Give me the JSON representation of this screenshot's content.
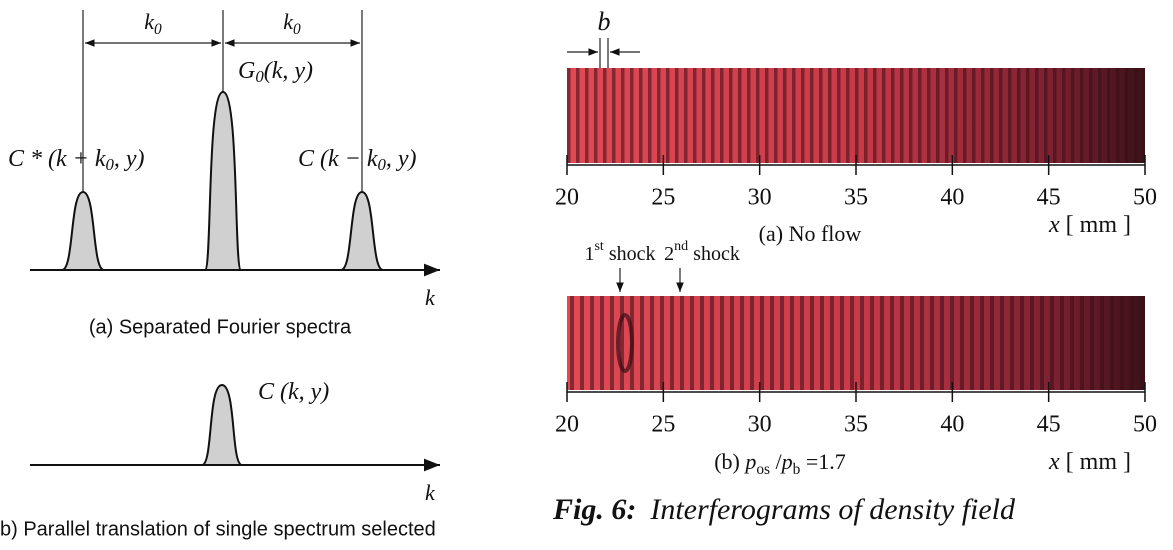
{
  "left": {
    "panel_a": {
      "spacing_labels": [
        {
          "parts": [
            {
              "text": "k"
            },
            {
              "text": "0",
              "sub": true
            }
          ]
        },
        {
          "parts": [
            {
              "text": "k"
            },
            {
              "text": "0",
              "sub": true
            }
          ]
        }
      ],
      "center_label": {
        "parts": [
          {
            "text": "G"
          },
          {
            "text": "0",
            "sub": true
          },
          {
            "text": "(k, y)"
          }
        ]
      },
      "left_label": {
        "parts": [
          {
            "text": "C * (k + k"
          },
          {
            "text": "0",
            "sub": true
          },
          {
            "text": ", y)"
          }
        ]
      },
      "right_label": {
        "parts": [
          {
            "text": "C (k − k"
          },
          {
            "text": "0",
            "sub": true
          },
          {
            "text": ", y)"
          }
        ]
      },
      "axis_label": "k",
      "caption": "(a) Separated Fourier spectra"
    },
    "panel_b": {
      "peak_label": {
        "parts": [
          {
            "text": "C (k, y)"
          }
        ]
      },
      "axis_label": "k",
      "caption": "b) Parallel translation of single spectrum selected"
    }
  },
  "right": {
    "fringe_label": "b",
    "charts": [
      {
        "xlim": [
          20,
          50
        ],
        "xticks": [
          20,
          25,
          30,
          35,
          40,
          45,
          50
        ],
        "axis_label": {
          "parts": [
            {
              "text": "x",
              "italic": true
            },
            {
              "text": " [ mm ]"
            }
          ]
        },
        "caption": {
          "parts": [
            {
              "text": "(a) No flow"
            }
          ]
        }
      },
      {
        "xlim": [
          20,
          50
        ],
        "xticks": [
          20,
          25,
          30,
          35,
          40,
          45,
          50
        ],
        "axis_label": {
          "parts": [
            {
              "text": "x",
              "italic": true
            },
            {
              "text": " [ mm ]"
            }
          ]
        },
        "caption": {
          "parts": [
            {
              "text": "(b) "
            },
            {
              "text": "p",
              "italic": true
            },
            {
              "text": "os",
              "sub": true
            },
            {
              "text": " /"
            },
            {
              "text": "p",
              "italic": true
            },
            {
              "text": "b",
              "sub": true
            },
            {
              "text": " =1.7"
            }
          ]
        },
        "annotations": [
          {
            "parts": [
              {
                "text": "1"
              },
              {
                "text": "st",
                "sup": true
              },
              {
                "text": " shock"
              }
            ]
          },
          {
            "parts": [
              {
                "text": "2"
              },
              {
                "text": "nd",
                "sup": true
              },
              {
                "text": " shock"
              }
            ]
          }
        ]
      }
    ],
    "figure_caption": {
      "number": "Fig. 6:",
      "text": "Interferograms of density field"
    }
  }
}
